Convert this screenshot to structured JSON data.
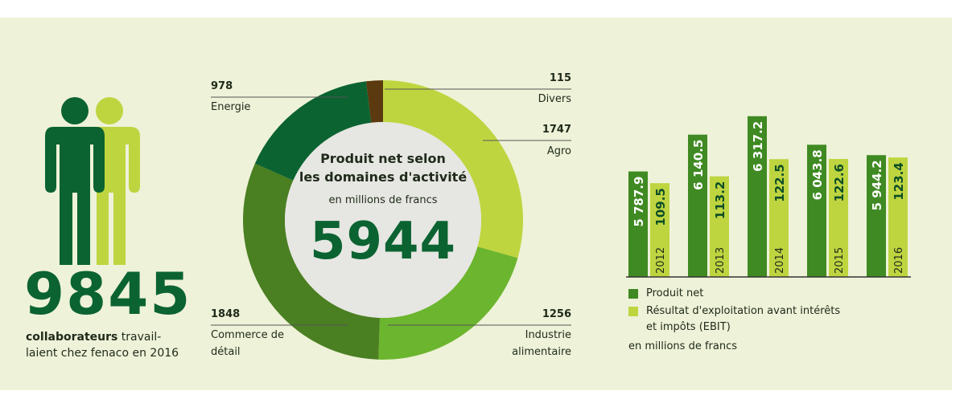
{
  "employees": {
    "count": "9845",
    "caption_bold": "collaborateurs",
    "caption_rest_1": " travail-",
    "caption_rest_2": "laient chez fenaco en 2016"
  },
  "donut": {
    "title_line1": "Produit net selon",
    "title_line2": "les domaines d'activité",
    "subtitle": "en millions de francs",
    "total": "5944"
  },
  "bar_legend": {
    "series1": "Produit net",
    "series2_line1": "Résultat d'exploitation avant intérêts",
    "series2_line2": "et impôts (EBIT)",
    "unit": "en millions de francs"
  },
  "colors": {
    "dark_green": "#0b6331",
    "mid_green": "#4a7f22",
    "light_green": "#bfd540",
    "bright_green": "#6cb52e",
    "brown": "#5a3a0e",
    "panel": "#eef2d8"
  },
  "chart_data": [
    {
      "type": "pie",
      "title": "Produit net selon les domaines d'activité",
      "subtitle": "en millions de francs",
      "total": 5944,
      "slices": [
        {
          "label": "Divers",
          "value": 115,
          "color": "#5a3a0e"
        },
        {
          "label": "Agro",
          "value": 1747,
          "color": "#bfd540"
        },
        {
          "label": "Industrie alimentaire",
          "value": 1256,
          "color": "#6cb52e"
        },
        {
          "label": "Commerce de détail",
          "value": 1848,
          "color": "#4a7f22"
        },
        {
          "label": "Energie",
          "value": 978,
          "color": "#0b6331"
        }
      ]
    },
    {
      "type": "bar",
      "categories": [
        "2012",
        "2013",
        "2014",
        "2015",
        "2016"
      ],
      "series": [
        {
          "name": "Produit net",
          "values": [
            5787.9,
            6140.5,
            6317.2,
            6043.8,
            5944.2
          ],
          "labels": [
            "5 787.9",
            "6 140.5",
            "6 317.2",
            "6 043.8",
            "5 944.2"
          ],
          "color": "#3f8a22"
        },
        {
          "name": "Résultat d'exploitation avant intérêts et impôts (EBIT)",
          "values": [
            109.5,
            113.2,
            122.5,
            122.6,
            123.4
          ],
          "labels": [
            "109.5",
            "113.2",
            "122.5",
            "122.6",
            "123.4"
          ],
          "color": "#bfd540"
        }
      ],
      "ylabel": "en millions de francs"
    }
  ]
}
